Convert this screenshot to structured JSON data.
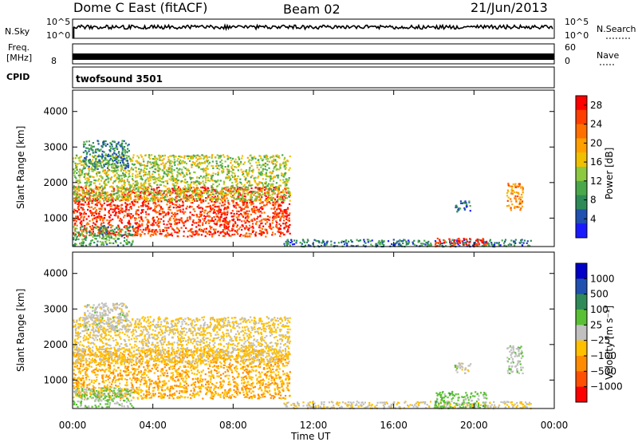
{
  "header": {
    "station": "Dome C East (fitACF)",
    "beam": "Beam 02",
    "date": "21/Jun/2013"
  },
  "strips": {
    "nsky_label": "N.Sky",
    "nsky_ticks": [
      "10^5",
      "10^0"
    ],
    "nsearch_label": "N.Search",
    "nsearch_ticks": [
      "10^5",
      "10^0"
    ],
    "freq_label_line1": "Freq.",
    "freq_label_line2": "[MHz]",
    "freq_ticks": [
      "8"
    ],
    "nave_label": "Nave",
    "nave_ticks": [
      "60",
      "0"
    ],
    "cpid_label": "CPID",
    "cpid_value": "twofsound 3501"
  },
  "colors": {
    "power_scale": [
      "#1a1aff",
      "#2050b0",
      "#2e8b57",
      "#4aa84a",
      "#8cc840",
      "#f0c000",
      "#ffa000",
      "#ff7000",
      "#ff4000",
      "#ff0000"
    ],
    "velocity_scale": [
      "#0000c8",
      "#2050b0",
      "#2e8b57",
      "#59c033",
      "#c0c0c0",
      "#ffc000",
      "#ff8c00",
      "#ff5000",
      "#ff0000"
    ]
  },
  "chart_data": [
    {
      "type": "heatmap",
      "name": "power",
      "xlabel": "Time UT",
      "ylabel": "Slant Range [km]",
      "x_ticks": [
        "00:00",
        "04:00",
        "08:00",
        "12:00",
        "16:00",
        "20:00",
        "00:00"
      ],
      "xlim": [
        0,
        24
      ],
      "y_ticks": [
        1000,
        2000,
        3000,
        4000
      ],
      "ylim": [
        200,
        4600
      ],
      "colorbar_label": "Power [dB]",
      "colorbar_ticks": [
        "4",
        "8",
        "12",
        "16",
        "20",
        "24",
        "28"
      ],
      "colorbar_range": [
        0,
        30
      ],
      "regions": [
        {
          "t0": 0.0,
          "t1": 10.8,
          "r0": 500,
          "r1": 1900,
          "level": 26
        },
        {
          "t0": 0.0,
          "t1": 10.8,
          "r0": 1500,
          "r1": 2800,
          "level": 14
        },
        {
          "t0": 0.5,
          "t1": 2.8,
          "r0": 2400,
          "r1": 3200,
          "level": 8
        },
        {
          "t0": 0.0,
          "t1": 3.0,
          "r0": 250,
          "r1": 800,
          "level": 10
        },
        {
          "t0": 10.5,
          "t1": 22.8,
          "r0": 220,
          "r1": 420,
          "level": 7
        },
        {
          "t0": 18.0,
          "t1": 20.6,
          "r0": 220,
          "r1": 450,
          "level": 27
        },
        {
          "t0": 21.6,
          "t1": 22.4,
          "r0": 1200,
          "r1": 2000,
          "level": 20
        },
        {
          "t0": 19.0,
          "t1": 19.8,
          "r0": 1200,
          "r1": 1500,
          "level": 7
        }
      ]
    },
    {
      "type": "heatmap",
      "name": "velocity",
      "xlabel": "Time UT",
      "ylabel": "Slant Range [km]",
      "x_ticks": [
        "00:00",
        "04:00",
        "08:00",
        "12:00",
        "16:00",
        "20:00",
        "00:00"
      ],
      "xlim": [
        0,
        24
      ],
      "y_ticks": [
        1000,
        2000,
        3000,
        4000
      ],
      "ylim": [
        200,
        4600
      ],
      "colorbar_label": "Velocity [m s⁻¹]",
      "colorbar_ticks": [
        "1000",
        "500",
        "100",
        "25",
        "−25",
        "−100",
        "−500",
        "−1000"
      ],
      "colorbar_range": [
        -1000,
        1000
      ],
      "regions": [
        {
          "t0": 0.0,
          "t1": 10.8,
          "r0": 500,
          "r1": 1900,
          "level": -300
        },
        {
          "t0": 0.0,
          "t1": 10.8,
          "r0": 1500,
          "r1": 2800,
          "level": -150
        },
        {
          "t0": 0.5,
          "t1": 2.8,
          "r0": 2400,
          "r1": 3200,
          "level": 0
        },
        {
          "t0": 0.0,
          "t1": 3.0,
          "r0": 250,
          "r1": 800,
          "level": 120
        },
        {
          "t0": 10.5,
          "t1": 22.8,
          "r0": 220,
          "r1": 420,
          "level": -80
        },
        {
          "t0": 18.0,
          "t1": 20.6,
          "r0": 220,
          "r1": 700,
          "level": 200
        },
        {
          "t0": 21.6,
          "t1": 22.4,
          "r0": 1200,
          "r1": 2000,
          "level": 60
        },
        {
          "t0": 19.0,
          "t1": 19.8,
          "r0": 1200,
          "r1": 1500,
          "level": 0
        }
      ]
    }
  ]
}
